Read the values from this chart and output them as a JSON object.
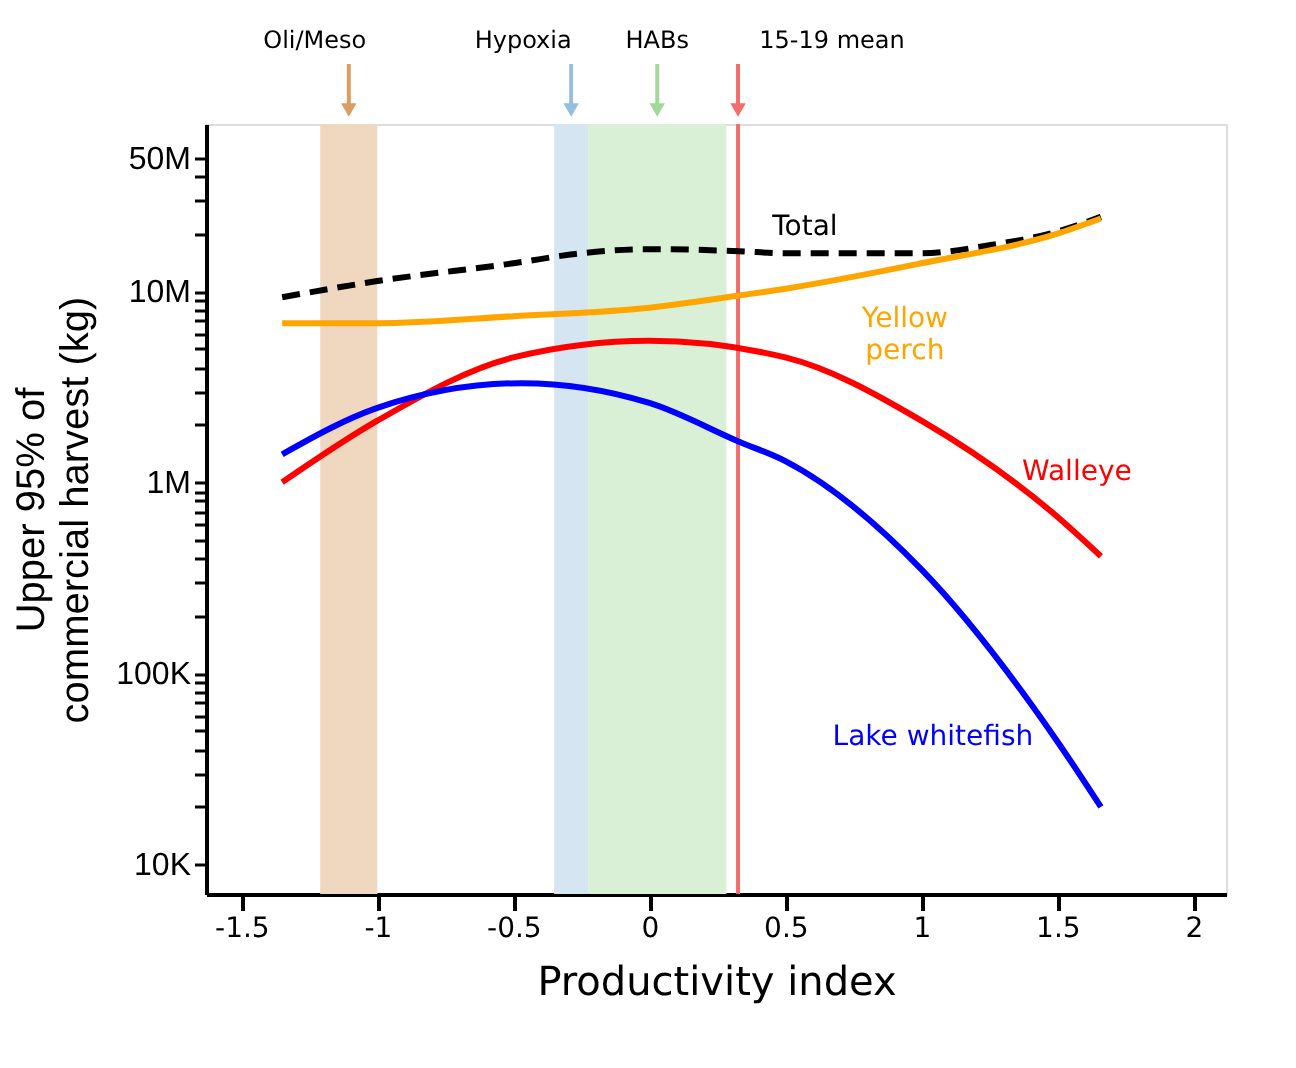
{
  "chart_data": {
    "type": "line",
    "xlabel": "Productivity index",
    "ylabel": "Upper 95% of\ncommercial harvest (kg)",
    "log": "y",
    "grid": false,
    "marker": "none",
    "xlim": [
      -1.63,
      2.12
    ],
    "xticks": [
      -1.5,
      -1,
      -0.5,
      0,
      0.5,
      1,
      1.5,
      2
    ],
    "ylim": [
      7000,
      75000000
    ],
    "yticks": [
      {
        "value": 10000,
        "label": "10K"
      },
      {
        "value": 20000,
        "label": null
      },
      {
        "value": 30000,
        "label": null
      },
      {
        "value": 40000,
        "label": null
      },
      {
        "value": 50000,
        "label": null
      },
      {
        "value": 60000,
        "label": null
      },
      {
        "value": 70000,
        "label": null
      },
      {
        "value": 80000,
        "label": null
      },
      {
        "value": 90000,
        "label": null
      },
      {
        "value": 100000,
        "label": "100K"
      },
      {
        "value": 200000,
        "label": null
      },
      {
        "value": 300000,
        "label": null
      },
      {
        "value": 400000,
        "label": null
      },
      {
        "value": 500000,
        "label": null
      },
      {
        "value": 600000,
        "label": null
      },
      {
        "value": 700000,
        "label": null
      },
      {
        "value": 800000,
        "label": null
      },
      {
        "value": 900000,
        "label": null
      },
      {
        "value": 1000000,
        "label": "1M"
      },
      {
        "value": 2000000,
        "label": null
      },
      {
        "value": 3000000,
        "label": null
      },
      {
        "value": 4000000,
        "label": null
      },
      {
        "value": 5000000,
        "label": null
      },
      {
        "value": 6000000,
        "label": null
      },
      {
        "value": 7000000,
        "label": null
      },
      {
        "value": 8000000,
        "label": null
      },
      {
        "value": 9000000,
        "label": null
      },
      {
        "value": 10000000,
        "label": "10M"
      },
      {
        "value": 20000000,
        "label": null
      },
      {
        "value": 30000000,
        "label": null
      },
      {
        "value": 40000000,
        "label": null
      },
      {
        "value": 50000000,
        "label": "50M"
      }
    ],
    "series": [
      {
        "name": "Total",
        "color": "#000000",
        "line_style": "dashed",
        "x": [
          -1.35,
          -1,
          -0.5,
          -0.25,
          0,
          0.33,
          0.5,
          1,
          1.25,
          1.5,
          1.66
        ],
        "values": [
          9300000,
          11300000,
          14000000,
          15800000,
          16600000,
          16200000,
          15800000,
          15800000,
          17400000,
          20500000,
          24500000
        ]
      },
      {
        "name": "Yellow perch",
        "color": "#ffa500",
        "x": [
          -1.35,
          -1,
          -0.5,
          0,
          0.33,
          0.5,
          1,
          1.5,
          1.66
        ],
        "values": [
          6800000,
          6800000,
          7400000,
          8200000,
          9500000,
          10300000,
          14000000,
          20000000,
          24000000
        ]
      },
      {
        "name": "Walleye",
        "color": "#ff0000",
        "x": [
          -1.35,
          -1,
          -0.5,
          0,
          0.5,
          1,
          1.5,
          1.66
        ],
        "values": [
          1000000,
          2100000,
          4500000,
          5500000,
          4500000,
          2100000,
          660000,
          410000
        ]
      },
      {
        "name": "Lake whitefish",
        "color": "#0000ff",
        "x": [
          -1.35,
          -1,
          -0.47,
          0,
          0.33,
          0.5,
          1,
          1.5,
          1.66
        ],
        "values": [
          1400000,
          2450000,
          3300000,
          2600000,
          1630000,
          1290000,
          350000,
          44000,
          20000
        ]
      }
    ],
    "bands": [
      {
        "axis": "x",
        "from": -1.21,
        "to": -1.0,
        "label": "Oli/Meso",
        "color": "#f0d8c0"
      },
      {
        "axis": "x",
        "from": -0.35,
        "to": -0.225,
        "label": "Hypoxia",
        "color": "#d5e5f2"
      },
      {
        "axis": "x",
        "from": -0.225,
        "to": 0.283,
        "label": "HABs",
        "color": "#daf0d6"
      }
    ],
    "ref_lines": [
      {
        "axis": "x",
        "value": 0.326,
        "label": "15-19 mean",
        "color": "#f56c6c",
        "line_style": "solid"
      }
    ]
  }
}
